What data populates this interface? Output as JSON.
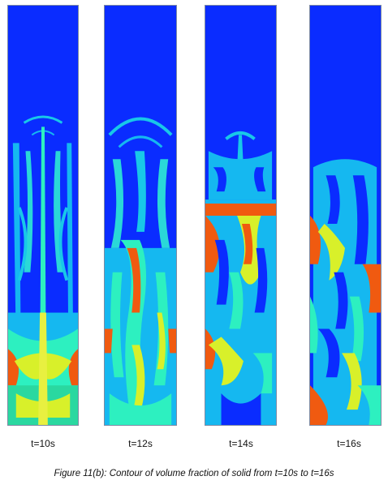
{
  "figure": {
    "panels": [
      {
        "label": "t=10s"
      },
      {
        "label": "t=12s"
      },
      {
        "label": "t=14s"
      },
      {
        "label": "t=16s"
      }
    ],
    "caption": "Figure 11(b): Contour of volume fraction of solid from t=10s to t=16s",
    "colors": {
      "low": "#0a2cff",
      "mid_low": "#15b8f0",
      "mid": "#2df0c0",
      "mid_high": "#d8f02a",
      "high": "#f05a10",
      "max": "#e01010"
    }
  }
}
